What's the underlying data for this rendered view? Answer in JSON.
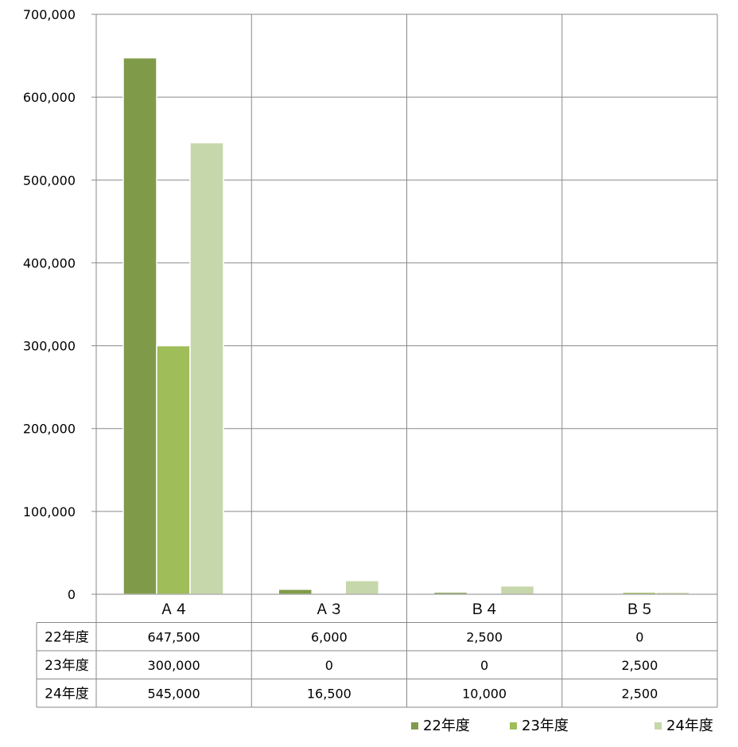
{
  "chart_data": {
    "type": "bar",
    "title": "",
    "xlabel": "",
    "ylabel": "",
    "categories": [
      "Ａ４",
      "Ａ３",
      "Ｂ４",
      "Ｂ５"
    ],
    "series": [
      {
        "name": "22年度",
        "values": [
          647500,
          6000,
          2500,
          0
        ],
        "labels": [
          "647,500",
          "6,000",
          "2,500",
          "0"
        ],
        "color": "#7f9b49"
      },
      {
        "name": "23年度",
        "values": [
          300000,
          0,
          0,
          2500
        ],
        "labels": [
          "300,000",
          "0",
          "0",
          "2,500"
        ],
        "color": "#9fbd59"
      },
      {
        "name": "24年度",
        "values": [
          545000,
          16500,
          10000,
          2500
        ],
        "labels": [
          "545,000",
          "16,500",
          "10,000",
          "2,500"
        ],
        "color": "#c6d7ab"
      }
    ],
    "ylim": [
      0,
      700000
    ],
    "yticks": [
      {
        "value": 0,
        "label": "0"
      },
      {
        "value": 100000,
        "label": "100,000"
      },
      {
        "value": 200000,
        "label": "200,000"
      },
      {
        "value": 300000,
        "label": "300,000"
      },
      {
        "value": 400000,
        "label": "400,000"
      },
      {
        "value": 500000,
        "label": "500,000"
      },
      {
        "value": 600000,
        "label": "600,000"
      },
      {
        "value": 700000,
        "label": "700,000"
      }
    ],
    "grid": true,
    "legend": "bottom-right",
    "data_table": true
  }
}
